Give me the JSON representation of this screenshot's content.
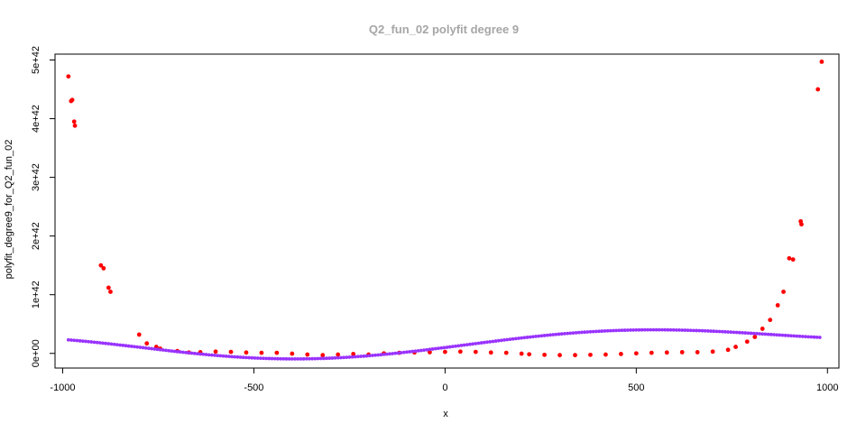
{
  "chart_data": {
    "type": "scatter",
    "title": "Q2_fun_02 polyfit degree 9",
    "xlabel": "x",
    "ylabel": "polyfit_degree9_for_Q2_fun_02",
    "xlim": [
      -1020,
      1030
    ],
    "ylim": [
      -2.5e+41,
      5.1e+42
    ],
    "x_ticks": [
      {
        "value": -1000,
        "label": "-1000"
      },
      {
        "value": -500,
        "label": "-500"
      },
      {
        "value": 0,
        "label": "0"
      },
      {
        "value": 500,
        "label": "500"
      },
      {
        "value": 1000,
        "label": "1000"
      }
    ],
    "y_ticks": [
      {
        "value": 0,
        "label": "0e+00"
      },
      {
        "value": 1e+42,
        "label": "1e+42"
      },
      {
        "value": 2e+42,
        "label": "2e+42"
      },
      {
        "value": 3e+42,
        "label": "3e+42"
      },
      {
        "value": 4e+42,
        "label": "4e+42"
      },
      {
        "value": 5e+42,
        "label": "5e+42"
      }
    ],
    "grid": false,
    "legend": "none",
    "series": [
      {
        "kind": "points",
        "color": "#ff0000",
        "points": [
          [
            -985,
            4.72e+42
          ],
          [
            -978,
            4.3e+42
          ],
          [
            -975,
            4.32e+42
          ],
          [
            -970,
            3.95e+42
          ],
          [
            -968,
            3.88e+42
          ],
          [
            -900,
            1.5e+42
          ],
          [
            -893,
            1.45e+42
          ],
          [
            -880,
            1.12e+42
          ],
          [
            -875,
            1.05e+42
          ],
          [
            -800,
            3.2e+41
          ],
          [
            -780,
            1.7e+41
          ],
          [
            -755,
            1.1e+41
          ],
          [
            -745,
            8e+40
          ],
          [
            -700,
            4e+40
          ],
          [
            -670,
            1.5e+40
          ],
          [
            -640,
            2e+40
          ],
          [
            -600,
            3e+40
          ],
          [
            -560,
            2.5e+40
          ],
          [
            -520,
            1.5e+40
          ],
          [
            -480,
            1e+40
          ],
          [
            -440,
            1e+40
          ],
          [
            -400,
            -5e+39
          ],
          [
            -360,
            -2e+40
          ],
          [
            -320,
            -3e+40
          ],
          [
            -280,
            -2e+40
          ],
          [
            -240,
            -1e+40
          ],
          [
            -200,
            -2e+40
          ],
          [
            -160,
            0
          ],
          [
            -120,
            1e+40
          ],
          [
            -80,
            1.5e+40
          ],
          [
            -40,
            2e+40
          ],
          [
            0,
            2.5e+40
          ],
          [
            40,
            3e+40
          ],
          [
            80,
            2.5e+40
          ],
          [
            120,
            1.5e+40
          ],
          [
            160,
            1e+40
          ],
          [
            200,
            -5e+39
          ],
          [
            220,
            -1.5e+40
          ],
          [
            260,
            -2.5e+40
          ],
          [
            300,
            -3e+40
          ],
          [
            340,
            -3e+40
          ],
          [
            380,
            -2.5e+40
          ],
          [
            420,
            -2e+40
          ],
          [
            460,
            -1e+40
          ],
          [
            500,
            0
          ],
          [
            540,
            1e+40
          ],
          [
            580,
            1.5e+40
          ],
          [
            620,
            2e+40
          ],
          [
            660,
            2e+40
          ],
          [
            700,
            3e+40
          ],
          [
            740,
            6e+40
          ],
          [
            760,
            1.1e+41
          ],
          [
            790,
            2e+41
          ],
          [
            810,
            2.8e+41
          ],
          [
            830,
            4.2e+41
          ],
          [
            850,
            5.7e+41
          ],
          [
            870,
            8.2e+41
          ],
          [
            885,
            1.05e+42
          ],
          [
            900,
            1.62e+42
          ],
          [
            910,
            1.6e+42
          ],
          [
            930,
            2.25e+42
          ],
          [
            932,
            2.2e+42
          ],
          [
            975,
            4.5e+42
          ],
          [
            985,
            4.97e+42
          ]
        ]
      },
      {
        "kind": "line-points",
        "color": "#9933ff",
        "line_color": "#8000c0",
        "polynomial_fit": {
          "x_scale": 1000,
          "y_scale": 1e+42,
          "coefficients": [
            0.0227,
            0,
            -0.264,
            0.0138,
            1.063,
            -0.1379,
            -1.63,
            0.2758,
            0.822,
            0.1
          ]
        }
      }
    ]
  }
}
